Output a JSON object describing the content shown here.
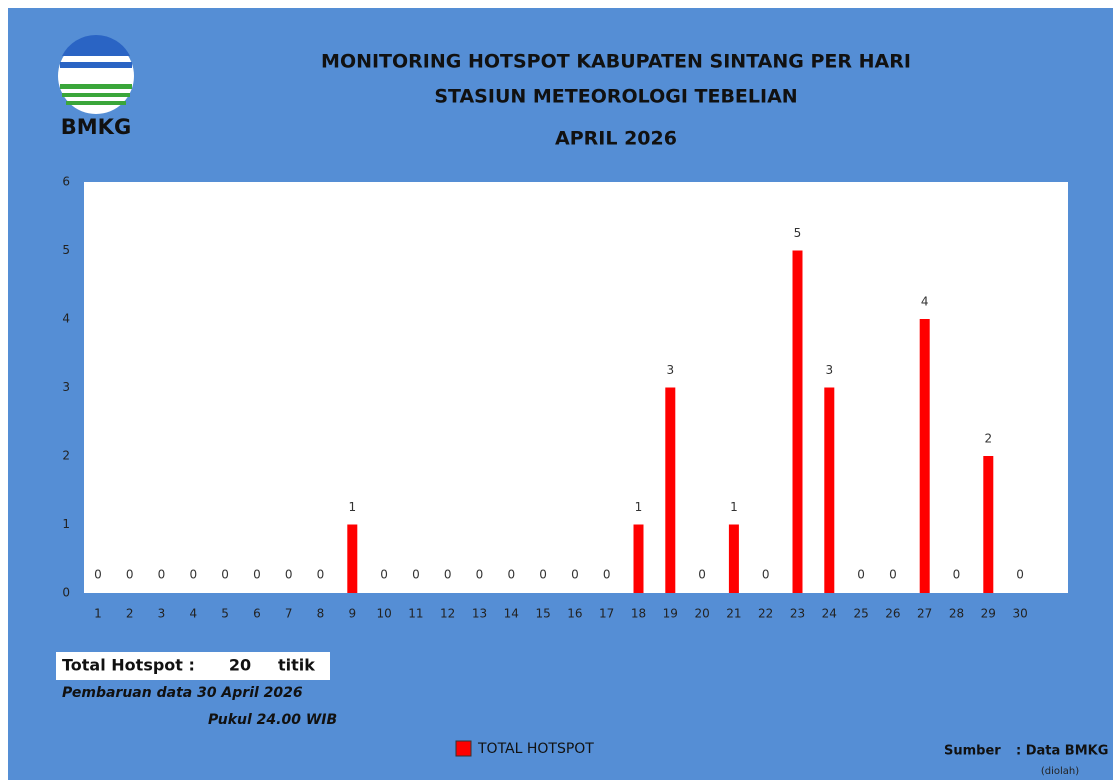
{
  "chart_data": {
    "type": "bar",
    "logo_text": "BMKG",
    "title": [
      "MONITORING HOTSPOT KABUPATEN SINTANG PER HARI",
      "STASIUN METEOROLOGI TEBELIAN",
      "APRIL 2026"
    ],
    "categories": [
      "1",
      "2",
      "3",
      "4",
      "5",
      "6",
      "7",
      "8",
      "9",
      "10",
      "11",
      "12",
      "13",
      "14",
      "15",
      "16",
      "17",
      "18",
      "19",
      "20",
      "21",
      "22",
      "23",
      "24",
      "25",
      "26",
      "27",
      "28",
      "29",
      "30"
    ],
    "series": [
      {
        "name": "TOTAL HOTSPOT",
        "color": "#ff0000",
        "values": [
          0,
          0,
          0,
          0,
          0,
          0,
          0,
          0,
          1,
          0,
          0,
          0,
          0,
          0,
          0,
          0,
          0,
          1,
          3,
          0,
          1,
          0,
          5,
          3,
          0,
          0,
          4,
          0,
          2,
          0
        ]
      }
    ],
    "ylim": [
      0,
      6
    ],
    "yticks": [
      0,
      1,
      2,
      3,
      4,
      5,
      6
    ],
    "total": {
      "label": "Total Hotspot :",
      "value": 20,
      "unit": "titik"
    },
    "notes": [
      "Pembaruan data 30 April 2026",
      "Pukul 24.00 WIB"
    ],
    "source": {
      "label": "Sumber",
      "value": ": Data BMKG",
      "note": "(diolah)"
    }
  }
}
